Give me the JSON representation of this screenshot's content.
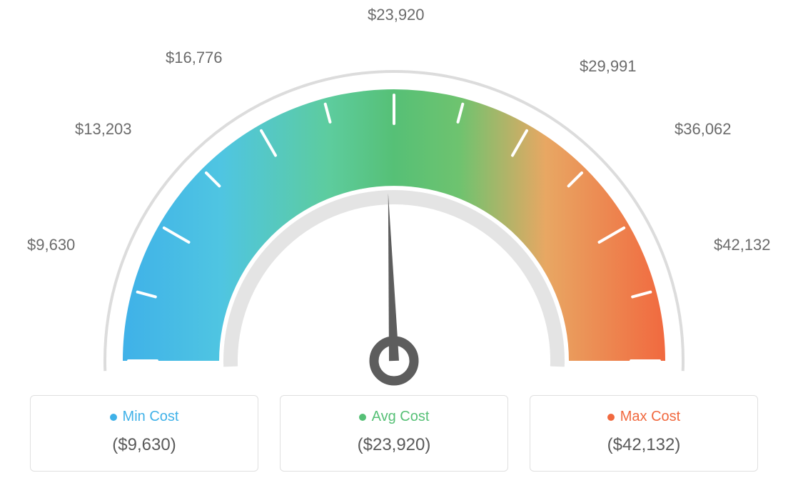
{
  "gauge": {
    "type": "gauge",
    "min_value": 9630,
    "avg_value": 23920,
    "max_value": 42132,
    "scale_labels": [
      "$9,630",
      "$13,203",
      "$16,776",
      "$23,920",
      "$29,991",
      "$36,062",
      "$42,132"
    ],
    "scale_positions_deg": [
      180,
      150,
      120,
      90,
      60,
      30,
      0
    ],
    "scale_label_xy": [
      [
        38,
        330
      ],
      [
        105,
        168
      ],
      [
        232,
        68
      ],
      [
        515,
        8
      ],
      [
        812,
        80
      ],
      [
        945,
        168
      ],
      [
        1000,
        330
      ]
    ],
    "needle_angle_deg": 92,
    "colors": {
      "gradient_stops": [
        [
          "0%",
          "#3fb1e8"
        ],
        [
          "18%",
          "#4fc5e2"
        ],
        [
          "38%",
          "#5dcc9e"
        ],
        [
          "50%",
          "#56c076"
        ],
        [
          "62%",
          "#6ec36f"
        ],
        [
          "78%",
          "#e8a763"
        ],
        [
          "100%",
          "#f1693f"
        ]
      ],
      "outer_arc": "#dcdcdc",
      "inner_arc": "#e4e4e4",
      "tick": "#ffffff",
      "needle": "#5d5d5d",
      "needle_ring": "#5d5d5d",
      "background": "#ffffff"
    },
    "outer_radius": 405,
    "arc_outer_r": 380,
    "arc_inner_r": 245,
    "tick_width": 4,
    "tick_major_len": 40,
    "tick_minor_len": 26,
    "label_fontsize": 22,
    "label_color": "#6b6b6b"
  },
  "legend": {
    "cards": [
      {
        "key": "min",
        "title": "Min Cost",
        "value": "($9,630)",
        "color": "#3fb1e8"
      },
      {
        "key": "avg",
        "title": "Avg Cost",
        "value": "($23,920)",
        "color": "#56c076"
      },
      {
        "key": "max",
        "title": "Max Cost",
        "value": "($42,132)",
        "color": "#f1693f"
      }
    ],
    "title_fontsize": 20,
    "value_fontsize": 24,
    "value_color": "#5a5a5a",
    "border_color": "#e0e0e0",
    "border_radius": 6
  }
}
